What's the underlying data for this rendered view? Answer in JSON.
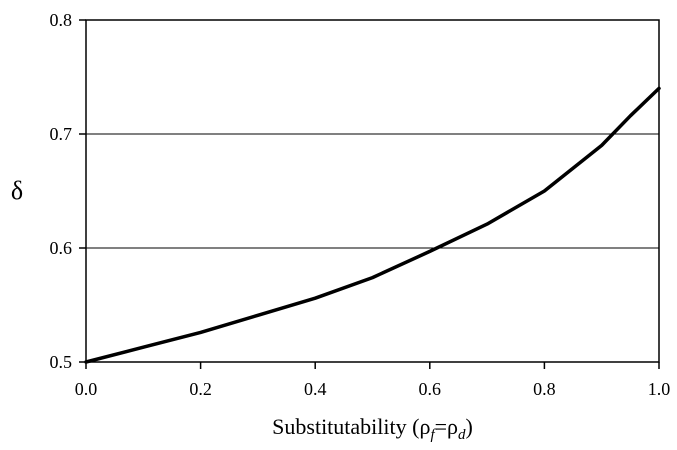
{
  "chart_data": {
    "type": "line",
    "title": "",
    "xlabel": "Substitutability (ρf=ρd)",
    "xlabel_parts": {
      "prefix": "Substitutability (",
      "rho1": "ρ",
      "sub1": "f",
      "eq": "=",
      "rho2": "ρ",
      "sub2": "d",
      "suffix": ")"
    },
    "ylabel": "δ",
    "xlim": [
      0.0,
      1.0
    ],
    "ylim": [
      0.5,
      0.8
    ],
    "x_ticks": [
      "0.0",
      "0.2",
      "0.4",
      "0.6",
      "0.8",
      "1.0"
    ],
    "y_ticks": [
      "0.5",
      "0.6",
      "0.7",
      "0.8"
    ],
    "grid": "horizontal",
    "legend": "none",
    "line_color": "#000000",
    "series": [
      {
        "x": [
          0.0,
          0.1,
          0.2,
          0.3,
          0.4,
          0.5,
          0.6,
          0.7,
          0.8,
          0.9,
          0.95,
          1.0
        ],
        "values": [
          0.5,
          0.513,
          0.526,
          0.541,
          0.556,
          0.574,
          0.597,
          0.621,
          0.65,
          0.69,
          0.716,
          0.74
        ]
      }
    ]
  }
}
